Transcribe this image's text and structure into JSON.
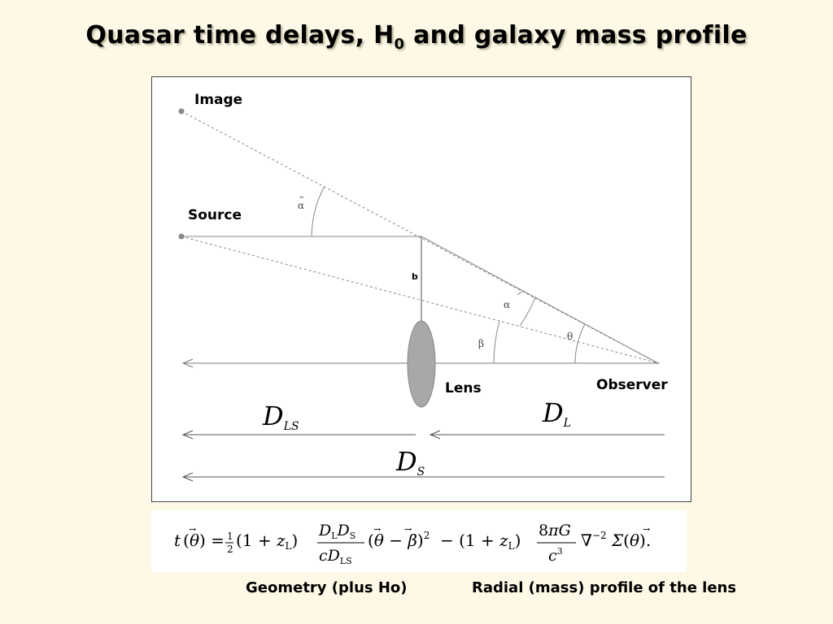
{
  "title": {
    "main": "Quasar time delays, H",
    "sub": "0",
    "rest": " and galaxy mass profile"
  },
  "diagram": {
    "labels": {
      "image": "Image",
      "source": "Source",
      "b": "b",
      "lens": "Lens",
      "observer": "Observer",
      "alpha_hat": "α",
      "alpha": "α",
      "beta": "β",
      "theta": "θ"
    },
    "distances": {
      "d_ls": {
        "main": "D",
        "sub": "LS"
      },
      "d_l": {
        "main": "D",
        "sub": "L"
      },
      "d_s": {
        "main": "D",
        "sub": "S"
      }
    }
  },
  "formula": {
    "text": "t(θ) = ½(1 + zL) DL DS / (c DLS) (θ − β)² − (1 + zL) 8πG / c³ ∇⁻² Σ(θ)."
  },
  "captions": {
    "left": "Geometry (plus Ho)",
    "right": "Radial (mass) profile of the lens"
  },
  "colors": {
    "background": "#fdf9e6",
    "lens_fill": "#a8a8a8",
    "line": "#808080"
  }
}
